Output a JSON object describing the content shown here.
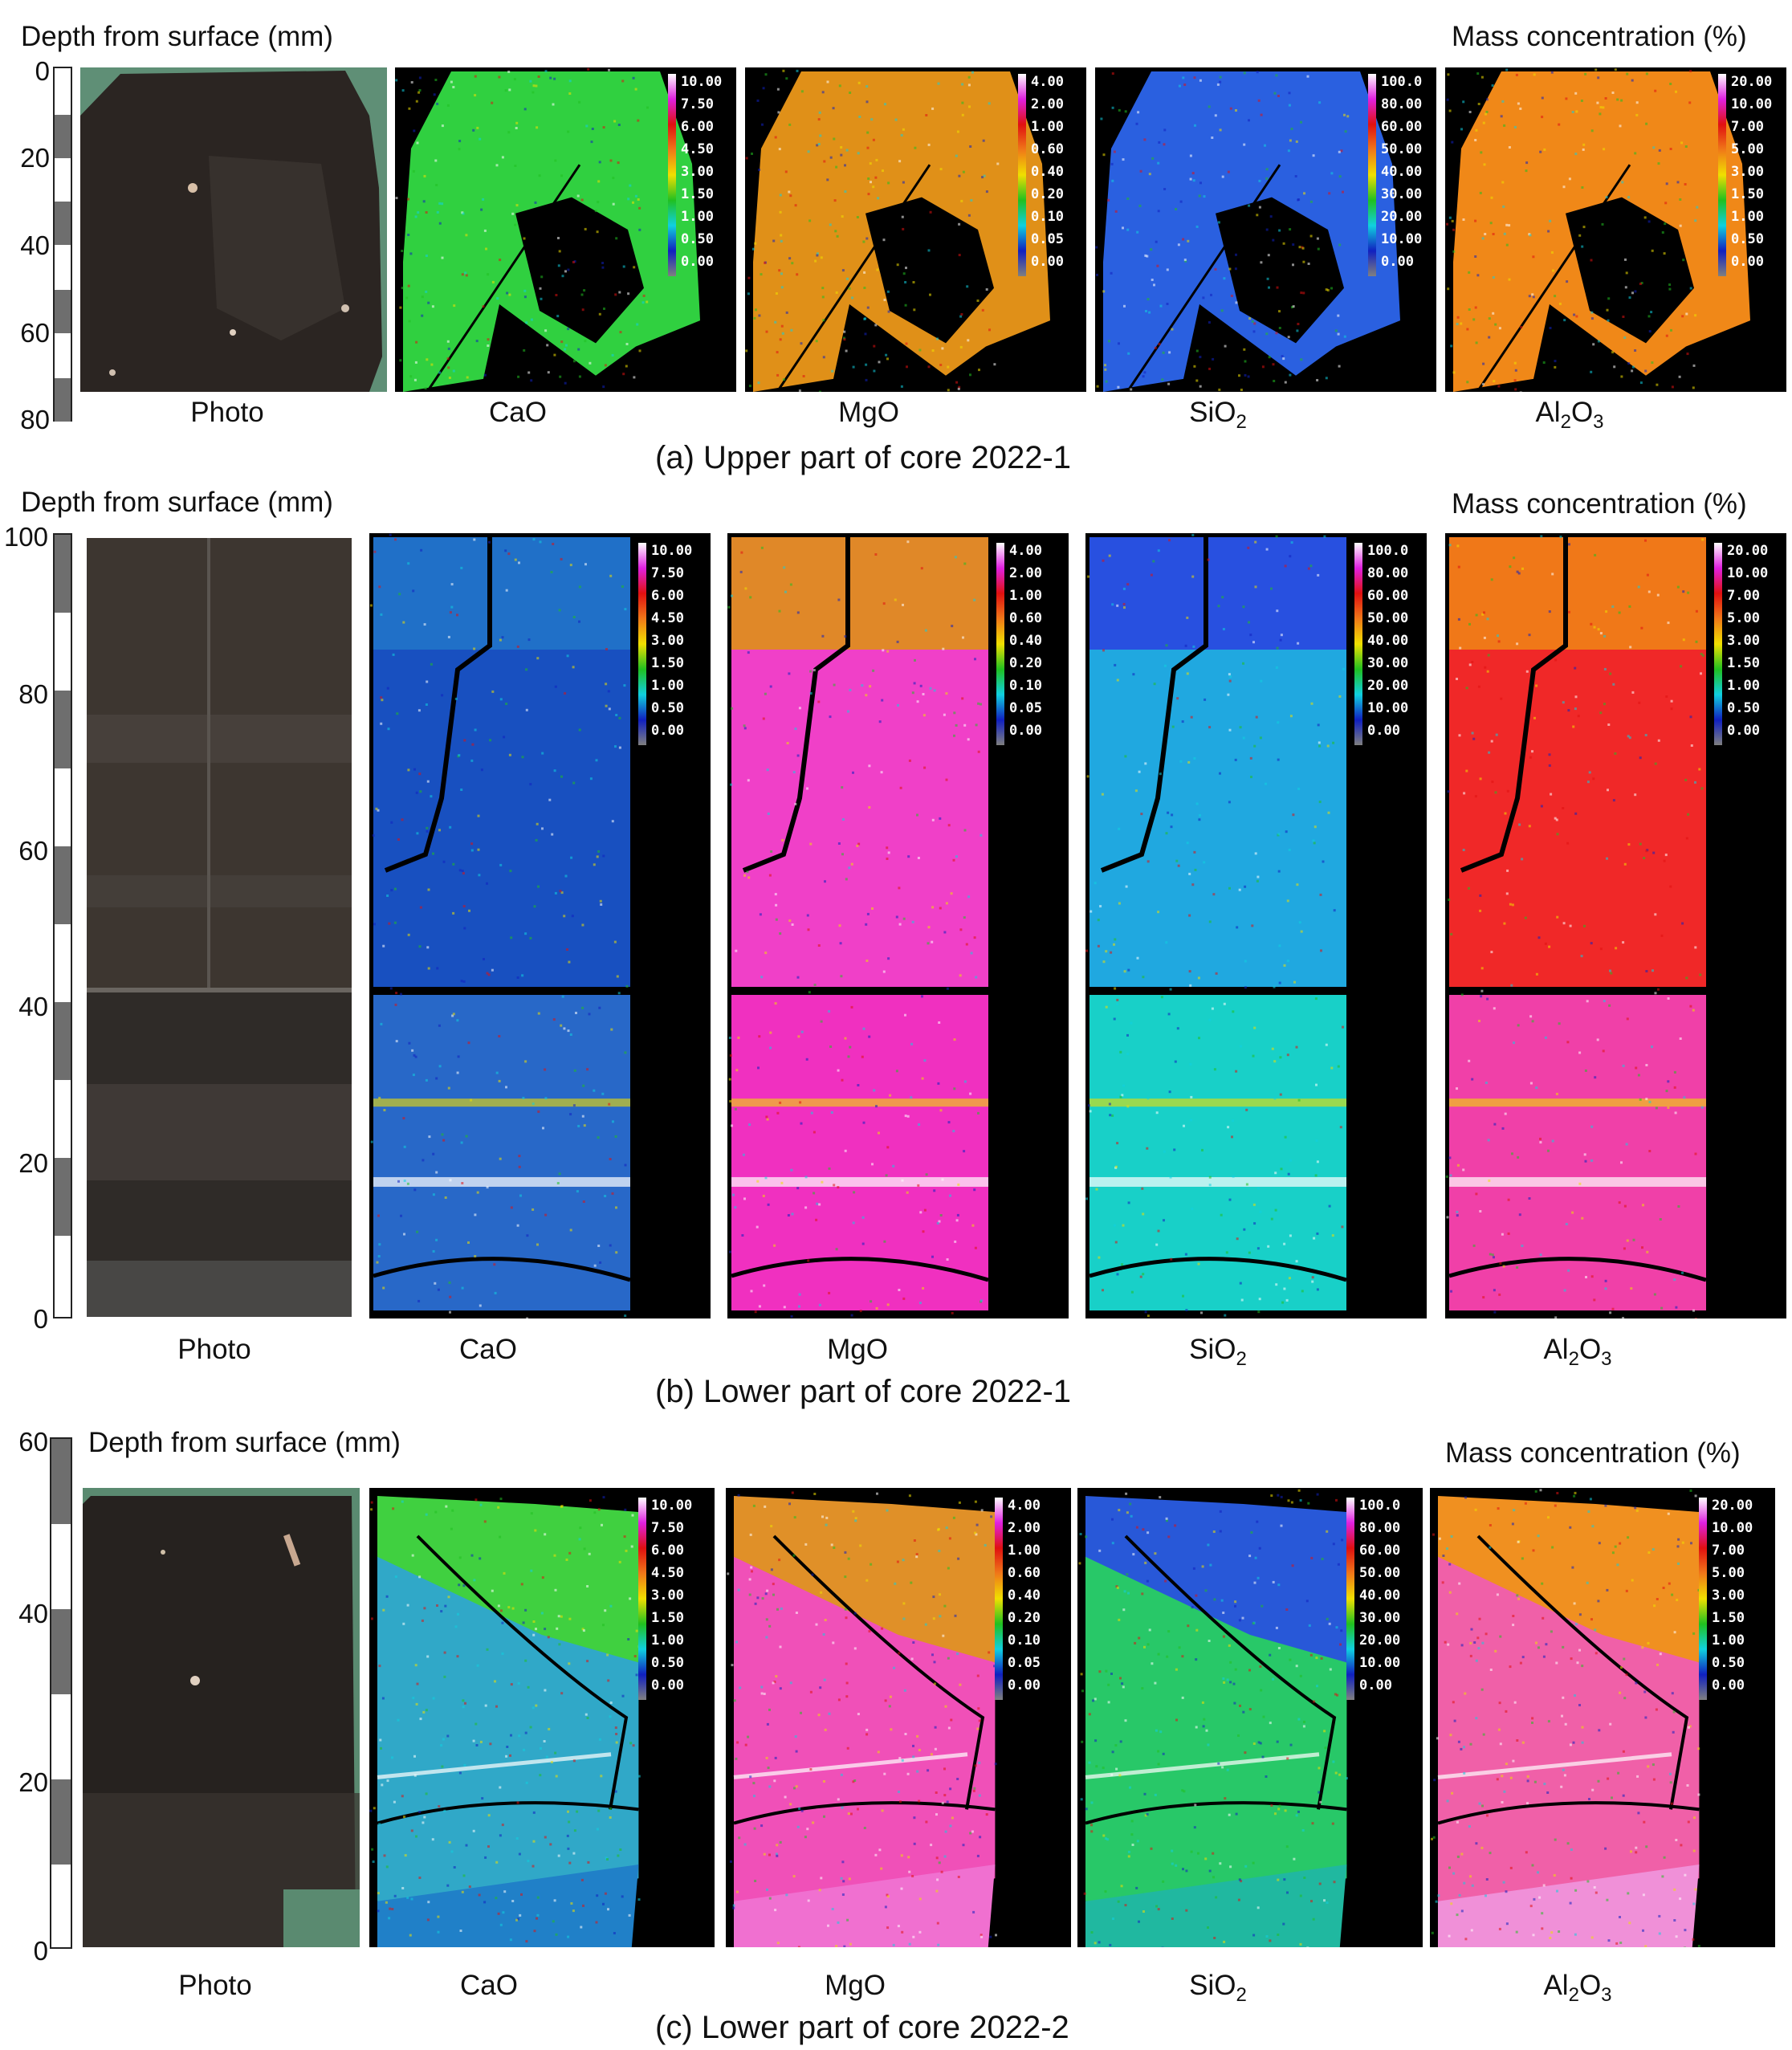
{
  "sections": [
    {
      "id": "a",
      "depth_label": "Depth from surface (mm)",
      "conc_label": "Mass concentration (%)",
      "caption": "(a) Upper part of core 2022-1",
      "ticks": [
        "0",
        "20",
        "40",
        "60",
        "80"
      ],
      "columns": [
        "Photo",
        "CaO",
        "MgO",
        "SiO",
        "Al"
      ],
      "colorbars": {
        "CaO": [
          "10.00",
          "7.50",
          "6.00",
          "4.50",
          "3.00",
          "1.50",
          "1.00",
          "0.50",
          "0.00"
        ],
        "MgO": [
          "4.00",
          "2.00",
          "1.00",
          "0.60",
          "0.40",
          "0.20",
          "0.10",
          "0.05",
          "0.00"
        ],
        "SiO2": [
          "100.0",
          "80.00",
          "60.00",
          "50.00",
          "40.00",
          "30.00",
          "20.00",
          "10.00",
          "0.00"
        ],
        "Al2O3": [
          "20.00",
          "10.00",
          "7.00",
          "5.00",
          "3.00",
          "1.50",
          "1.00",
          "0.50",
          "0.00"
        ]
      }
    },
    {
      "id": "b",
      "depth_label": "Depth from surface (mm)",
      "conc_label": "Mass concentration (%)",
      "caption": "(b) Lower part of core 2022-1",
      "ticks": [
        "100",
        "80",
        "60",
        "40",
        "20",
        "0"
      ],
      "colorbars": {
        "CaO": [
          "10.00",
          "7.50",
          "6.00",
          "4.50",
          "3.00",
          "1.50",
          "1.00",
          "0.50",
          "0.00"
        ],
        "MgO": [
          "4.00",
          "2.00",
          "1.00",
          "0.60",
          "0.40",
          "0.20",
          "0.10",
          "0.05",
          "0.00"
        ],
        "SiO2": [
          "100.0",
          "80.00",
          "60.00",
          "50.00",
          "40.00",
          "30.00",
          "20.00",
          "10.00",
          "0.00"
        ],
        "Al2O3": [
          "20.00",
          "10.00",
          "7.00",
          "5.00",
          "3.00",
          "1.50",
          "1.00",
          "0.50",
          "0.00"
        ]
      }
    },
    {
      "id": "c",
      "depth_label": "Depth from surface (mm)",
      "conc_label": "Mass concentration (%)",
      "caption": "(c) Lower part of core 2022-2",
      "ticks": [
        "60",
        "40",
        "20",
        "0"
      ],
      "colorbars": {
        "CaO": [
          "10.00",
          "7.50",
          "6.00",
          "4.50",
          "3.00",
          "1.50",
          "1.00",
          "0.50",
          "0.00"
        ],
        "MgO": [
          "4.00",
          "2.00",
          "1.00",
          "0.60",
          "0.40",
          "0.20",
          "0.10",
          "0.05",
          "0.00"
        ],
        "SiO2": [
          "100.0",
          "80.00",
          "60.00",
          "50.00",
          "40.00",
          "30.00",
          "20.00",
          "10.00",
          "0.00"
        ],
        "Al2O3": [
          "20.00",
          "10.00",
          "7.00",
          "5.00",
          "3.00",
          "1.50",
          "1.00",
          "0.50",
          "0.00"
        ]
      }
    }
  ],
  "column_labels": {
    "photo": "Photo",
    "cao": "CaO",
    "mgo": "MgO",
    "sio2_base": "SiO",
    "sio2_sub": "2",
    "al2o3_a": "Al",
    "al2o3_sub1": "2",
    "al2o3_b": "O",
    "al2o3_sub2": "3"
  },
  "colorbar_colors": [
    "#ffffff",
    "#e020e0",
    "#e01010",
    "#f07818",
    "#f0e000",
    "#20c020",
    "#10d0e0",
    "#1020c0",
    "#808080"
  ],
  "map_colors": {
    "a": {
      "CaO": "#30d040",
      "MgO": "#e09018",
      "SiO2": "#2a60e0",
      "Al2O3": "#f08818"
    },
    "b_top": {
      "CaO": "#2070c8",
      "MgO": "#e08828",
      "SiO2": "#2850e0",
      "Al2O3": "#f07818"
    },
    "b_mid": {
      "CaO": "#1850c0",
      "MgO": "#f040c8",
      "SiO2": "#20a8e0",
      "Al2O3": "#f02828"
    },
    "b_low": {
      "CaO": "#2868c8",
      "MgO": "#f030c0",
      "SiO2": "#18d0c8",
      "Al2O3": "#f040a8"
    },
    "c_top": {
      "CaO": "#40d040",
      "MgO": "#e09028",
      "SiO2": "#2858d8",
      "Al2O3": "#f09020"
    },
    "c_mid": {
      "CaO": "#30a8c8",
      "MgO": "#f050b8",
      "SiO2": "#28c868",
      "Al2O3": "#f060a8"
    },
    "c_low": {
      "CaO": "#2080c8",
      "MgO": "#f070d0",
      "SiO2": "#20b8a0",
      "Al2O3": "#f090d8"
    }
  }
}
